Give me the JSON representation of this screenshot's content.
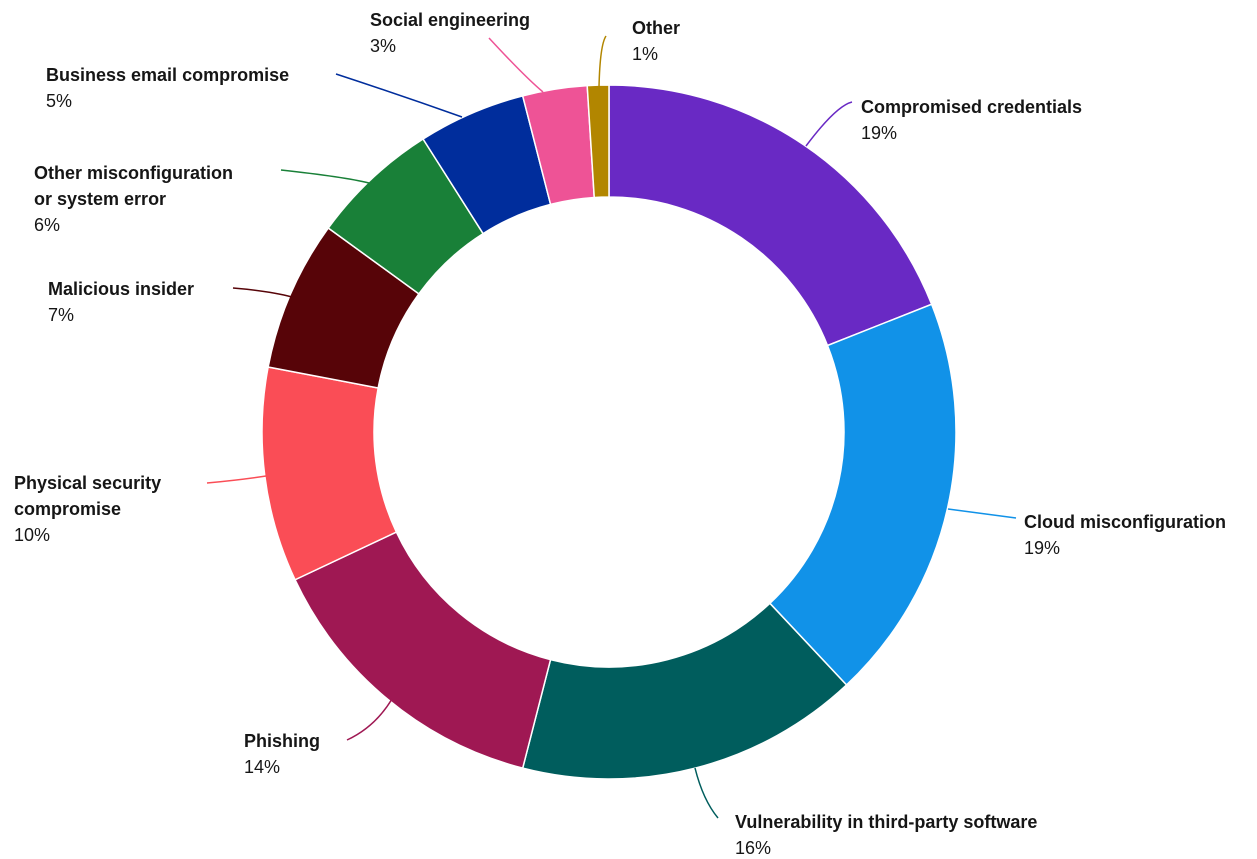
{
  "chart_data": {
    "type": "pie",
    "donut": true,
    "title": "",
    "slices": [
      {
        "name": "Compromised credentials",
        "lines": [
          "Compromised credentials"
        ],
        "value": 19,
        "value_label": "19%",
        "color": "#6929c4"
      },
      {
        "name": "Cloud misconfiguration",
        "lines": [
          "Cloud misconfiguration"
        ],
        "value": 19,
        "value_label": "19%",
        "color": "#1192e8"
      },
      {
        "name": "Vulnerability in third-party software",
        "lines": [
          "Vulnerability in third-party software"
        ],
        "value": 16,
        "value_label": "16%",
        "color": "#005d5d"
      },
      {
        "name": "Phishing",
        "lines": [
          "Phishing"
        ],
        "value": 14,
        "value_label": "14%",
        "color": "#9f1853"
      },
      {
        "name": "Physical security compromise",
        "lines": [
          "Physical security",
          "compromise"
        ],
        "value": 10,
        "value_label": "10%",
        "color": "#fa4d56"
      },
      {
        "name": "Malicious insider",
        "lines": [
          "Malicious insider"
        ],
        "value": 7,
        "value_label": "7%",
        "color": "#570408"
      },
      {
        "name": "Other misconfiguration or system error",
        "lines": [
          "Other misconfiguration",
          "or system error"
        ],
        "value": 6,
        "value_label": "6%",
        "color": "#198038"
      },
      {
        "name": "Business email compromise",
        "lines": [
          "Business email compromise"
        ],
        "value": 5,
        "value_label": "5%",
        "color": "#002d9c"
      },
      {
        "name": "Social engineering",
        "lines": [
          "Social engineering"
        ],
        "value": 3,
        "value_label": "3%",
        "color": "#ee5396"
      },
      {
        "name": "Other",
        "lines": [
          "Other"
        ],
        "value": 1,
        "value_label": "1%",
        "color": "#b28600"
      }
    ]
  }
}
